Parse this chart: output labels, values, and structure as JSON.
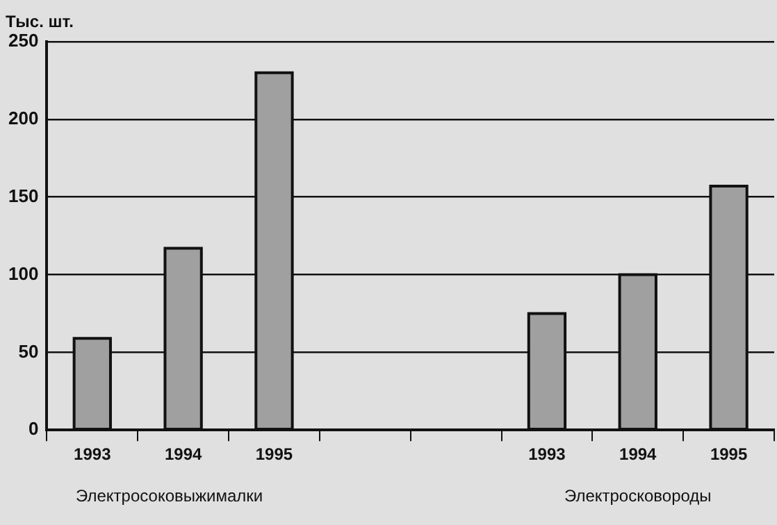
{
  "chart_data": {
    "type": "bar",
    "ylabel": "Тыс. шт.",
    "categories": [
      "1993",
      "1994",
      "1995",
      null,
      null,
      "1993",
      "1994",
      "1995"
    ],
    "values": [
      59,
      117,
      230,
      null,
      null,
      75,
      100,
      157
    ],
    "color": "#a0a0a0",
    "ylim": [
      0,
      250
    ],
    "yticks": [
      0,
      50,
      100,
      150,
      200,
      250
    ],
    "grid": "y",
    "annotations": [
      "Электросоковыжималки",
      "Электросковороды"
    ]
  }
}
